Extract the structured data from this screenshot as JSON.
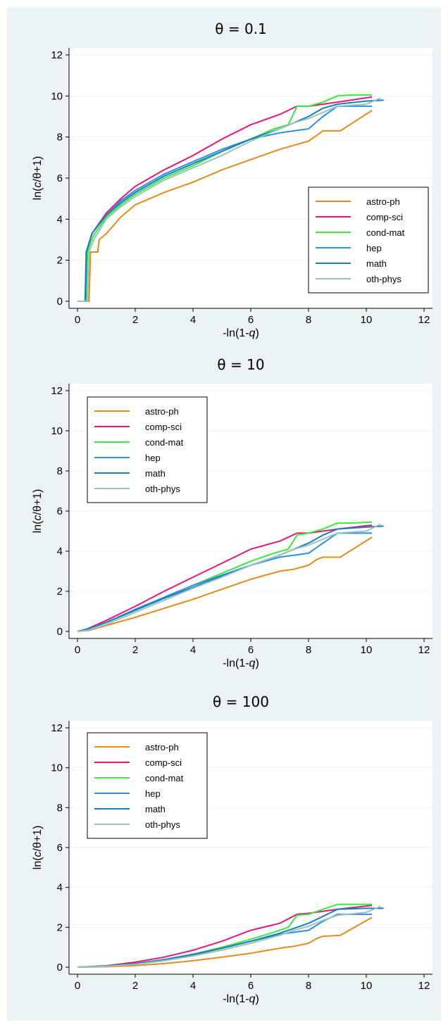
{
  "colors": {
    "astro-ph": "#e38b1c",
    "comp-sci": "#e8157d",
    "cond-mat": "#3be83b",
    "hep": "#2f8fe0",
    "math": "#1b7fb4",
    "oth-phys": "#9dc1bd"
  },
  "chart_data": [
    {
      "type": "line",
      "title": "θ = 0.1",
      "xlabel": "-ln(1-q)",
      "ylabel": "ln(c/θ+1)",
      "xlim": [
        0,
        12
      ],
      "ylim": [
        0,
        12
      ],
      "xticks": [
        "0",
        "2",
        "4",
        "6",
        "8",
        "10",
        "12"
      ],
      "yticks": [
        "0",
        "2",
        "4",
        "6",
        "8",
        "10",
        "12"
      ],
      "legend": "right-middle",
      "series": [
        {
          "name": "astro-ph",
          "x": [
            0,
            0.4,
            0.45,
            0.7,
            0.75,
            1,
            1.5,
            2,
            3,
            4,
            5,
            6,
            7,
            7.5,
            8,
            8.3,
            8.5,
            9.1,
            10.2
          ],
          "y": [
            0,
            0,
            2.4,
            2.4,
            3,
            3.3,
            4.1,
            4.7,
            5.3,
            5.8,
            6.4,
            6.9,
            7.4,
            7.6,
            7.8,
            8.1,
            8.3,
            8.3,
            9.3
          ]
        },
        {
          "name": "comp-sci",
          "x": [
            0,
            0.28,
            0.32,
            0.5,
            1,
            1.5,
            2,
            3,
            4,
            5,
            6,
            7,
            7.6,
            8,
            9,
            10.2
          ],
          "y": [
            0,
            0,
            2.4,
            3.3,
            4.3,
            5,
            5.6,
            6.4,
            7.1,
            7.9,
            8.6,
            9.1,
            9.5,
            9.5,
            9.7,
            9.95
          ]
        },
        {
          "name": "cond-mat",
          "x": [
            0,
            0.3,
            0.35,
            0.55,
            1,
            1.5,
            2,
            3,
            4,
            5,
            6,
            6.8,
            7.3,
            7.6,
            8,
            8.5,
            9,
            9.5,
            10.2
          ],
          "y": [
            0,
            0,
            2.4,
            3.2,
            4.1,
            4.7,
            5.2,
            6,
            6.6,
            7.3,
            7.9,
            8.4,
            8.6,
            9.5,
            9.5,
            9.7,
            10,
            10.05,
            10.05
          ]
        },
        {
          "name": "hep",
          "x": [
            0,
            0.26,
            0.3,
            0.5,
            1,
            1.5,
            2,
            3,
            4,
            5,
            6,
            7,
            7.5,
            8,
            8.5,
            9,
            9.5,
            10.2
          ],
          "y": [
            0,
            0,
            2.4,
            3.3,
            4.2,
            4.9,
            5.4,
            6.2,
            6.8,
            7.4,
            7.9,
            8.2,
            8.3,
            8.4,
            9,
            9.5,
            9.5,
            9.5
          ]
        },
        {
          "name": "math",
          "x": [
            0,
            0.27,
            0.31,
            0.5,
            1,
            1.5,
            2,
            3,
            4,
            5,
            6,
            7,
            7.5,
            8,
            8.5,
            9,
            10,
            10.6
          ],
          "y": [
            0,
            0,
            2.4,
            3.3,
            4.2,
            4.8,
            5.3,
            6.1,
            6.7,
            7.3,
            7.9,
            8.4,
            8.7,
            9,
            9.4,
            9.6,
            9.75,
            9.8
          ]
        },
        {
          "name": "oth-phys",
          "x": [
            0,
            0.35,
            0.4,
            0.6,
            1,
            1.5,
            2,
            3,
            4,
            5,
            6,
            7,
            7.5,
            8,
            8.5,
            9,
            10,
            10.5
          ],
          "y": [
            0,
            0,
            2.4,
            3.1,
            4,
            4.6,
            5.1,
            5.9,
            6.5,
            7.1,
            7.8,
            8.4,
            8.7,
            8.9,
            9.2,
            9.5,
            9.6,
            9.9
          ]
        }
      ]
    },
    {
      "type": "line",
      "title": "θ = 10",
      "xlabel": "-ln(1-q)",
      "ylabel": "ln(c/θ+1)",
      "xlim": [
        0,
        12
      ],
      "ylim": [
        0,
        12
      ],
      "xticks": [
        "0",
        "2",
        "4",
        "6",
        "8",
        "10",
        "12"
      ],
      "yticks": [
        "0",
        "2",
        "4",
        "6",
        "8",
        "10",
        "12"
      ],
      "legend": "top-left",
      "series": [
        {
          "name": "astro-ph",
          "x": [
            0,
            0.4,
            1,
            2,
            3,
            4,
            5,
            6,
            7,
            7.5,
            8,
            8.3,
            8.5,
            9.1,
            10.2
          ],
          "y": [
            0,
            0.05,
            0.3,
            0.7,
            1.15,
            1.6,
            2.1,
            2.6,
            3,
            3.1,
            3.3,
            3.6,
            3.7,
            3.7,
            4.7
          ]
        },
        {
          "name": "comp-sci",
          "x": [
            0,
            0.3,
            1,
            2,
            3,
            4,
            5,
            6,
            7,
            7.6,
            8,
            9,
            10.2
          ],
          "y": [
            0,
            0.1,
            0.55,
            1.25,
            2,
            2.7,
            3.4,
            4.1,
            4.5,
            4.9,
            4.9,
            5.1,
            5.3
          ]
        },
        {
          "name": "cond-mat",
          "x": [
            0,
            0.3,
            1,
            2,
            3,
            4,
            5,
            6,
            6.8,
            7.3,
            7.6,
            8,
            8.5,
            9,
            9.5,
            10.2
          ],
          "y": [
            0,
            0.1,
            0.45,
            1.05,
            1.7,
            2.3,
            2.9,
            3.5,
            3.9,
            4.1,
            4.8,
            4.9,
            5.1,
            5.4,
            5.4,
            5.45
          ]
        },
        {
          "name": "hep",
          "x": [
            0,
            0.3,
            1,
            2,
            3,
            4,
            5,
            6,
            7,
            7.5,
            8,
            8.5,
            9,
            9.5,
            10.2
          ],
          "y": [
            0,
            0.1,
            0.45,
            1.1,
            1.7,
            2.3,
            2.8,
            3.3,
            3.7,
            3.8,
            3.9,
            4.4,
            4.9,
            4.9,
            4.9
          ]
        },
        {
          "name": "math",
          "x": [
            0,
            0.3,
            1,
            2,
            3,
            4,
            5,
            6,
            7,
            7.5,
            8,
            8.5,
            9,
            10,
            10.6
          ],
          "y": [
            0,
            0.1,
            0.45,
            1.05,
            1.65,
            2.2,
            2.75,
            3.3,
            3.8,
            4.1,
            4.4,
            4.8,
            5.1,
            5.2,
            5.25
          ]
        },
        {
          "name": "oth-phys",
          "x": [
            0,
            0.35,
            1,
            2,
            3,
            4,
            5,
            6,
            7,
            7.5,
            8,
            8.5,
            9,
            10,
            10.5
          ],
          "y": [
            0,
            0.05,
            0.35,
            0.95,
            1.55,
            2.15,
            2.7,
            3.3,
            3.8,
            4.1,
            4.3,
            4.6,
            4.9,
            5,
            5.35
          ]
        }
      ]
    },
    {
      "type": "line",
      "title": "θ = 100",
      "xlabel": "-ln(1-q)",
      "ylabel": "ln(c/θ+1)",
      "xlim": [
        0,
        12
      ],
      "ylim": [
        0,
        12
      ],
      "xticks": [
        "0",
        "2",
        "4",
        "6",
        "8",
        "10",
        "12"
      ],
      "yticks": [
        "0",
        "2",
        "4",
        "6",
        "8",
        "10",
        "12"
      ],
      "legend": "top-left",
      "series": [
        {
          "name": "astro-ph",
          "x": [
            0,
            1,
            2,
            3,
            4,
            5,
            6,
            7,
            7.5,
            8,
            8.3,
            8.5,
            9.1,
            10.2
          ],
          "y": [
            0,
            0.02,
            0.08,
            0.18,
            0.32,
            0.5,
            0.7,
            0.95,
            1.05,
            1.2,
            1.45,
            1.55,
            1.6,
            2.5
          ]
        },
        {
          "name": "comp-sci",
          "x": [
            0,
            1,
            2,
            3,
            4,
            5,
            6,
            7,
            7.6,
            8,
            9,
            10.2
          ],
          "y": [
            0,
            0.07,
            0.25,
            0.5,
            0.85,
            1.3,
            1.85,
            2.2,
            2.65,
            2.7,
            2.9,
            3.1
          ]
        },
        {
          "name": "cond-mat",
          "x": [
            0,
            1,
            2,
            3,
            4,
            5,
            6,
            6.8,
            7.3,
            7.6,
            8,
            8.5,
            9,
            9.5,
            10.2
          ],
          "y": [
            0,
            0.05,
            0.18,
            0.38,
            0.65,
            1,
            1.4,
            1.75,
            2,
            2.6,
            2.65,
            2.9,
            3.15,
            3.15,
            3.15
          ]
        },
        {
          "name": "hep",
          "x": [
            0,
            1,
            2,
            3,
            4,
            5,
            6,
            7,
            7.5,
            8,
            8.5,
            9,
            9.5,
            10.2
          ],
          "y": [
            0,
            0.05,
            0.18,
            0.38,
            0.65,
            0.95,
            1.3,
            1.65,
            1.75,
            1.85,
            2.3,
            2.65,
            2.65,
            2.65
          ]
        },
        {
          "name": "math",
          "x": [
            0,
            1,
            2,
            3,
            4,
            5,
            6,
            7,
            7.5,
            8,
            8.5,
            9,
            10,
            10.6
          ],
          "y": [
            0,
            0.05,
            0.17,
            0.36,
            0.62,
            0.95,
            1.3,
            1.7,
            1.95,
            2.2,
            2.55,
            2.9,
            2.95,
            2.95
          ]
        },
        {
          "name": "oth-phys",
          "x": [
            0,
            1,
            2,
            3,
            4,
            5,
            6,
            7,
            7.5,
            8,
            8.5,
            9,
            10,
            10.5
          ],
          "y": [
            0,
            0.04,
            0.14,
            0.32,
            0.56,
            0.85,
            1.2,
            1.6,
            1.85,
            2.05,
            2.35,
            2.6,
            2.75,
            3.05
          ]
        }
      ]
    }
  ]
}
